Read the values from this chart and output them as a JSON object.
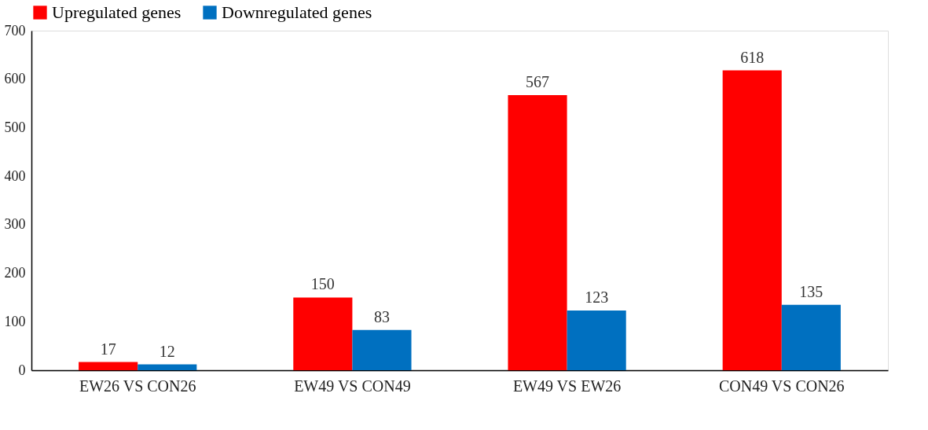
{
  "chart_data": {
    "type": "bar",
    "categories": [
      "EW26 VS CON26",
      "EW49 VS CON49",
      "EW49 VS EW26",
      "CON49 VS CON26"
    ],
    "series": [
      {
        "name": "Upregulated genes",
        "color": "#ff0000",
        "values": [
          17,
          150,
          567,
          618
        ]
      },
      {
        "name": "Downregulated genes",
        "color": "#0070c0",
        "values": [
          12,
          83,
          123,
          135
        ]
      }
    ],
    "ylim": [
      0,
      700
    ],
    "yticks": [
      0,
      100,
      200,
      300,
      400,
      500,
      600,
      700
    ],
    "grid": false,
    "legend": "top",
    "data_labels": true
  }
}
